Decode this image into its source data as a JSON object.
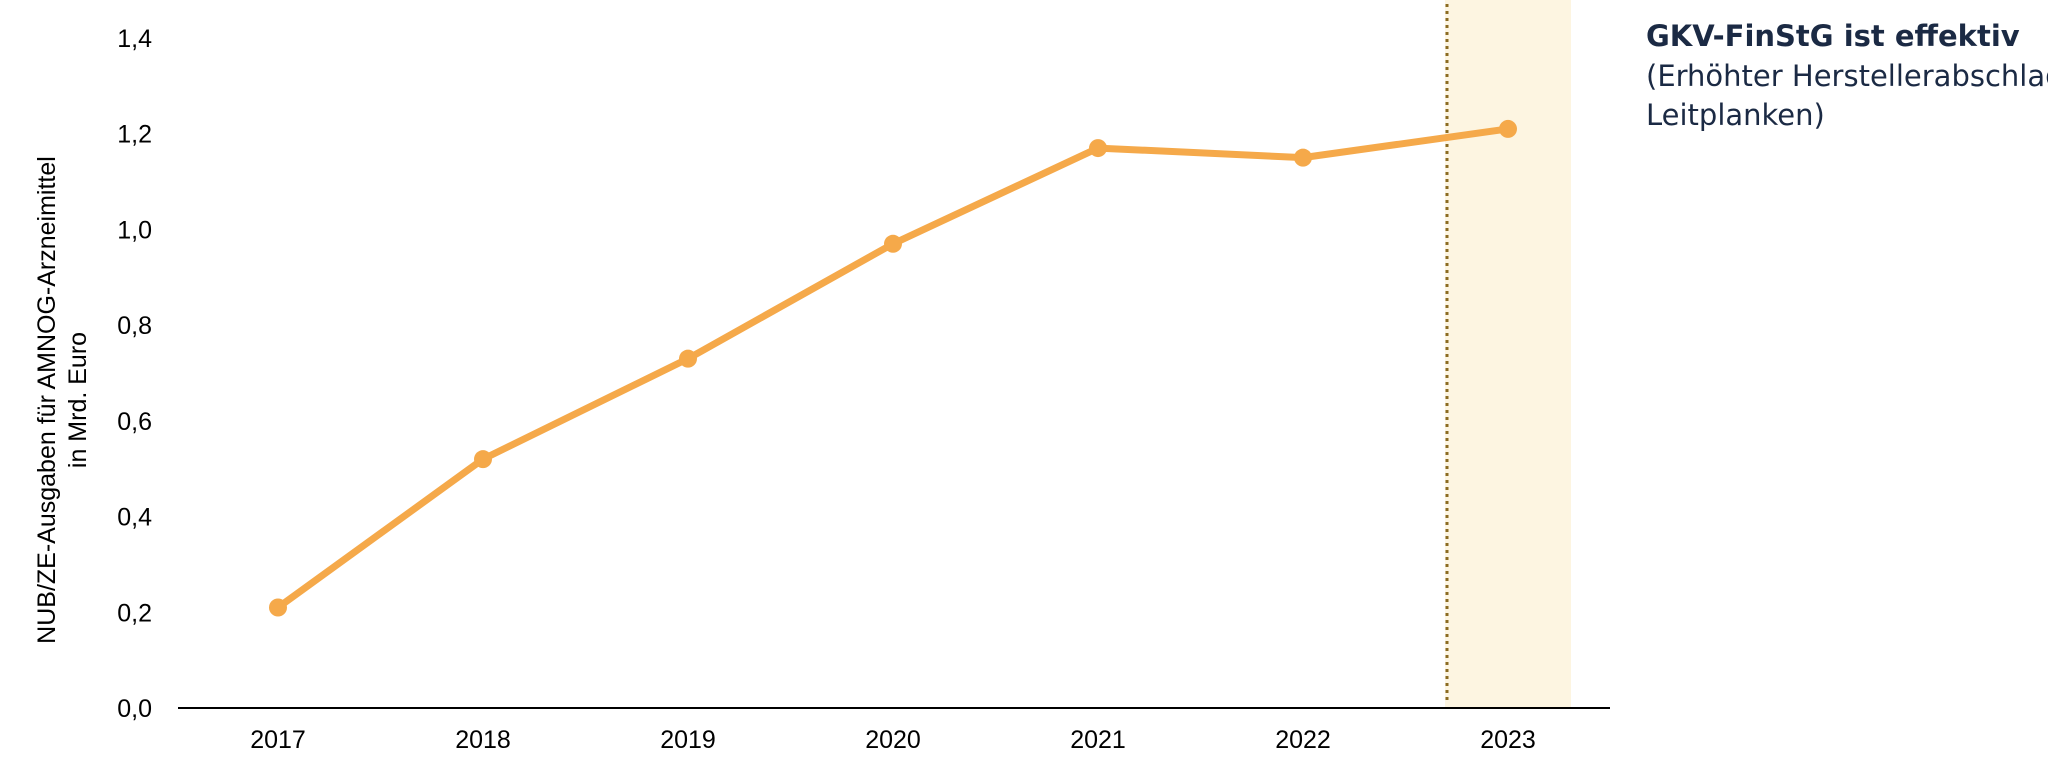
{
  "chart_data": {
    "type": "line",
    "title": "",
    "xlabel": "",
    "ylabel": "NUB/ZE-Ausgaben für AMNOG-Arzneimittel",
    "ylabel_line2": "in Mrd. Euro",
    "x": [
      "2017",
      "2018",
      "2019",
      "2020",
      "2021",
      "2022",
      "2023"
    ],
    "series": [
      {
        "values": [
          0.21,
          0.52,
          0.73,
          0.97,
          1.17,
          1.15,
          1.21
        ]
      }
    ],
    "ylim": [
      0,
      1.4
    ],
    "yticks": [
      0.0,
      0.2,
      0.4,
      0.6,
      0.8,
      1.0,
      1.2,
      1.4
    ],
    "ytick_labels": [
      "0,0",
      "0,2",
      "0,4",
      "0,6",
      "0,8",
      "1,0",
      "1,2",
      "1,4"
    ],
    "grid": false,
    "highlight": {
      "x": "2023",
      "marker": "dotted line"
    },
    "annotation": {
      "title": "GKV-FinStG ist effektiv",
      "lines": [
        "(Erhöhter Herstellerabschlag,",
        "Leitplanken)"
      ]
    }
  },
  "colors": {
    "line": "#F5A94A",
    "highlight_band": "#FDF5E1",
    "highlight_line": "#8B6B22",
    "annotation_title": "#1B2A44",
    "annotation_text": "#1B2A44",
    "axis": "#000000"
  }
}
